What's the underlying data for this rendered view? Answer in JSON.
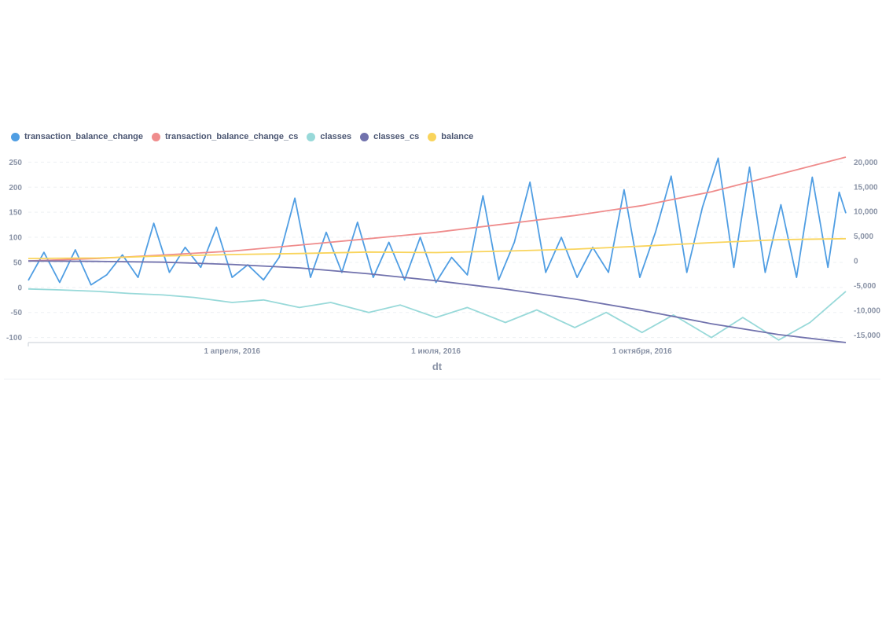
{
  "chart_data": {
    "type": "line",
    "x_axis": {
      "label": "dt",
      "range": [
        "2016-01-01",
        "2016-12-31"
      ],
      "ticks": [
        "1 апреля, 2016",
        "1 июля, 2016",
        "1 октября, 2016"
      ]
    },
    "y_left": {
      "range": [
        -110,
        260
      ],
      "ticks": [
        "250",
        "200",
        "150",
        "100",
        "50",
        "0",
        "-50",
        "-100"
      ]
    },
    "y_right": {
      "range": [
        -16500,
        21000
      ],
      "ticks": [
        "20,000",
        "15,000",
        "10,000",
        "5,000",
        "0",
        "-5,000",
        "-10,000",
        "-15,000"
      ]
    },
    "grid": true,
    "legend_position": "top-left",
    "series": [
      {
        "name": "transaction_balance_change",
        "axis": "left",
        "color": "#509ee3",
        "points": [
          [
            "2016-01-01",
            14
          ],
          [
            "2016-01-08",
            70
          ],
          [
            "2016-01-15",
            10
          ],
          [
            "2016-01-22",
            75
          ],
          [
            "2016-01-29",
            5
          ],
          [
            "2016-02-05",
            25
          ],
          [
            "2016-02-12",
            65
          ],
          [
            "2016-02-19",
            20
          ],
          [
            "2016-02-26",
            128
          ],
          [
            "2016-03-04",
            30
          ],
          [
            "2016-03-11",
            80
          ],
          [
            "2016-03-18",
            40
          ],
          [
            "2016-03-25",
            120
          ],
          [
            "2016-04-01",
            20
          ],
          [
            "2016-04-08",
            45
          ],
          [
            "2016-04-15",
            15
          ],
          [
            "2016-04-22",
            60
          ],
          [
            "2016-04-29",
            178
          ],
          [
            "2016-05-06",
            20
          ],
          [
            "2016-05-13",
            110
          ],
          [
            "2016-05-20",
            30
          ],
          [
            "2016-05-27",
            130
          ],
          [
            "2016-06-03",
            20
          ],
          [
            "2016-06-10",
            90
          ],
          [
            "2016-06-17",
            15
          ],
          [
            "2016-06-24",
            100
          ],
          [
            "2016-07-01",
            10
          ],
          [
            "2016-07-08",
            60
          ],
          [
            "2016-07-15",
            25
          ],
          [
            "2016-07-22",
            183
          ],
          [
            "2016-07-29",
            15
          ],
          [
            "2016-08-05",
            90
          ],
          [
            "2016-08-12",
            210
          ],
          [
            "2016-08-19",
            30
          ],
          [
            "2016-08-26",
            100
          ],
          [
            "2016-09-02",
            20
          ],
          [
            "2016-09-09",
            80
          ],
          [
            "2016-09-16",
            30
          ],
          [
            "2016-09-23",
            195
          ],
          [
            "2016-09-30",
            20
          ],
          [
            "2016-10-07",
            110
          ],
          [
            "2016-10-14",
            222
          ],
          [
            "2016-10-21",
            30
          ],
          [
            "2016-10-28",
            160
          ],
          [
            "2016-11-04",
            258
          ],
          [
            "2016-11-11",
            40
          ],
          [
            "2016-11-18",
            240
          ],
          [
            "2016-11-25",
            30
          ],
          [
            "2016-12-02",
            165
          ],
          [
            "2016-12-09",
            20
          ],
          [
            "2016-12-16",
            220
          ],
          [
            "2016-12-23",
            40
          ],
          [
            "2016-12-28",
            190
          ],
          [
            "2016-12-31",
            148
          ]
        ]
      },
      {
        "name": "transaction_balance_change_cs",
        "axis": "right",
        "color": "#ef8c8c",
        "points": [
          [
            "2016-01-01",
            0
          ],
          [
            "2016-02-01",
            500
          ],
          [
            "2016-03-01",
            1200
          ],
          [
            "2016-04-01",
            2000
          ],
          [
            "2016-05-01",
            3200
          ],
          [
            "2016-06-01",
            4500
          ],
          [
            "2016-07-01",
            5800
          ],
          [
            "2016-08-01",
            7500
          ],
          [
            "2016-09-01",
            9200
          ],
          [
            "2016-10-01",
            11200
          ],
          [
            "2016-11-01",
            14000
          ],
          [
            "2016-12-01",
            17500
          ],
          [
            "2016-12-31",
            21000
          ]
        ]
      },
      {
        "name": "classes",
        "axis": "left",
        "color": "#98d9d9",
        "points": [
          [
            "2016-01-01",
            -3
          ],
          [
            "2016-01-15",
            -5
          ],
          [
            "2016-02-01",
            -8
          ],
          [
            "2016-02-15",
            -12
          ],
          [
            "2016-03-01",
            -15
          ],
          [
            "2016-03-15",
            -20
          ],
          [
            "2016-04-01",
            -30
          ],
          [
            "2016-04-15",
            -25
          ],
          [
            "2016-05-01",
            -40
          ],
          [
            "2016-05-15",
            -30
          ],
          [
            "2016-06-01",
            -50
          ],
          [
            "2016-06-15",
            -35
          ],
          [
            "2016-07-01",
            -60
          ],
          [
            "2016-07-15",
            -40
          ],
          [
            "2016-08-01",
            -70
          ],
          [
            "2016-08-15",
            -45
          ],
          [
            "2016-09-01",
            -80
          ],
          [
            "2016-09-15",
            -50
          ],
          [
            "2016-10-01",
            -90
          ],
          [
            "2016-10-15",
            -55
          ],
          [
            "2016-11-01",
            -100
          ],
          [
            "2016-11-15",
            -60
          ],
          [
            "2016-12-01",
            -105
          ],
          [
            "2016-12-15",
            -70
          ],
          [
            "2016-12-31",
            -8
          ]
        ]
      },
      {
        "name": "classes_cs",
        "axis": "right",
        "color": "#7172ad",
        "points": [
          [
            "2016-01-01",
            0
          ],
          [
            "2016-02-01",
            -80
          ],
          [
            "2016-03-01",
            -250
          ],
          [
            "2016-04-01",
            -700
          ],
          [
            "2016-05-01",
            -1400
          ],
          [
            "2016-06-01",
            -2600
          ],
          [
            "2016-07-01",
            -4000
          ],
          [
            "2016-08-01",
            -5700
          ],
          [
            "2016-09-01",
            -7700
          ],
          [
            "2016-10-01",
            -10000
          ],
          [
            "2016-11-01",
            -12700
          ],
          [
            "2016-12-01",
            -14900
          ],
          [
            "2016-12-31",
            -16500
          ]
        ]
      },
      {
        "name": "balance",
        "axis": "right",
        "color": "#f9d45c",
        "points": [
          [
            "2016-01-01",
            500
          ],
          [
            "2016-02-01",
            600
          ],
          [
            "2016-03-01",
            1000
          ],
          [
            "2016-04-01",
            1300
          ],
          [
            "2016-05-01",
            1500
          ],
          [
            "2016-06-01",
            1800
          ],
          [
            "2016-07-01",
            1700
          ],
          [
            "2016-08-01",
            2000
          ],
          [
            "2016-09-01",
            2400
          ],
          [
            "2016-10-01",
            3000
          ],
          [
            "2016-11-01",
            3700
          ],
          [
            "2016-12-01",
            4300
          ],
          [
            "2016-12-31",
            4500
          ]
        ]
      }
    ]
  }
}
